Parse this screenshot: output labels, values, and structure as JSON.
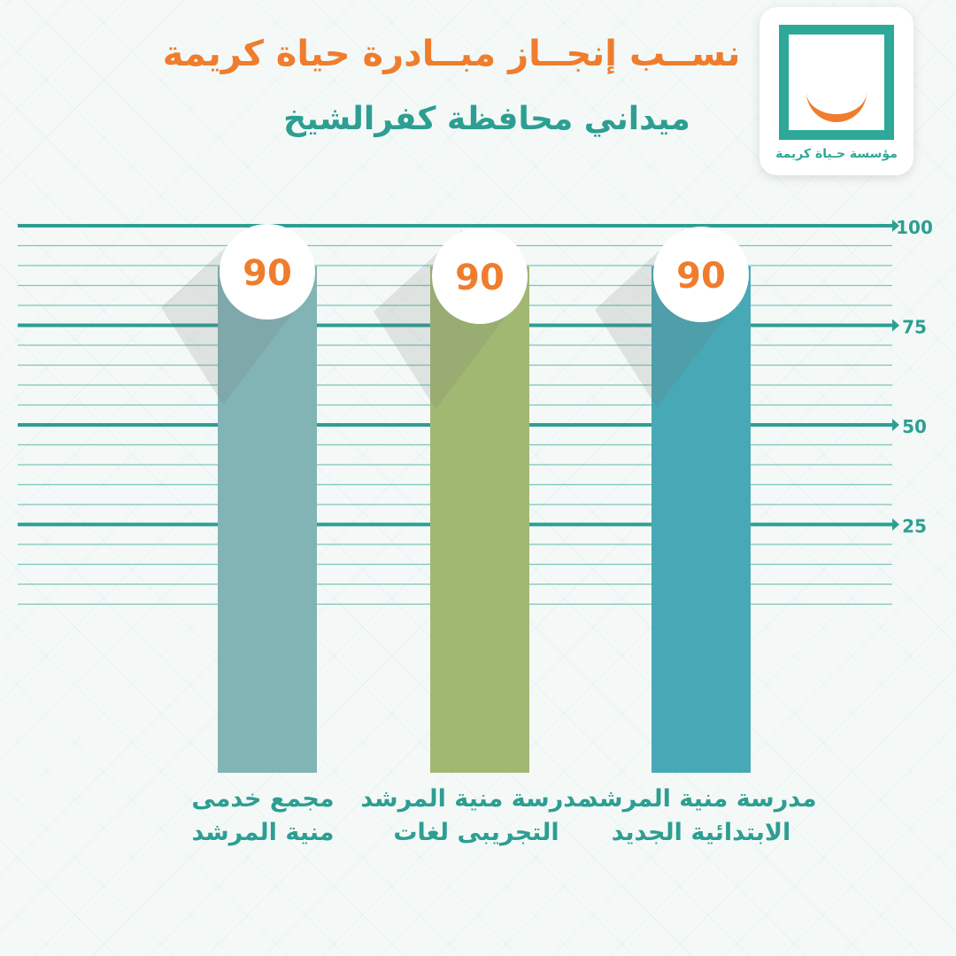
{
  "title": "نســب إنجــاز مبــادرة حياة كريمة",
  "subtitle": "ميداني محافظة كفرالشيخ",
  "logo": {
    "text": "مؤسسة حـياة كريمة"
  },
  "colors": {
    "title": "#ef7d2d",
    "accent": "#2d9e92",
    "bar_left": "#82b3b5",
    "bar_middle": "#a1b873",
    "bar_right": "#48a9b6"
  },
  "chart_data": {
    "type": "bar",
    "title": "نســب إنجــاز مبــادرة حياة كريمة",
    "subtitle": "ميداني محافظة كفرالشيخ",
    "categories": [
      [
        "مجمع خدمى",
        "منية المرشد"
      ],
      [
        "مدرسة منية المرشد",
        "التجريبى لغات"
      ],
      [
        "مدرسة منية المرشد",
        "الابتدائية الجديد"
      ]
    ],
    "values": [
      90,
      90,
      90
    ],
    "data_labels": [
      "90",
      "90",
      "90"
    ],
    "yticks": [
      "25",
      "50",
      "75",
      "100"
    ],
    "ylim": [
      0,
      100
    ],
    "grid": true,
    "axis_side": "right"
  }
}
